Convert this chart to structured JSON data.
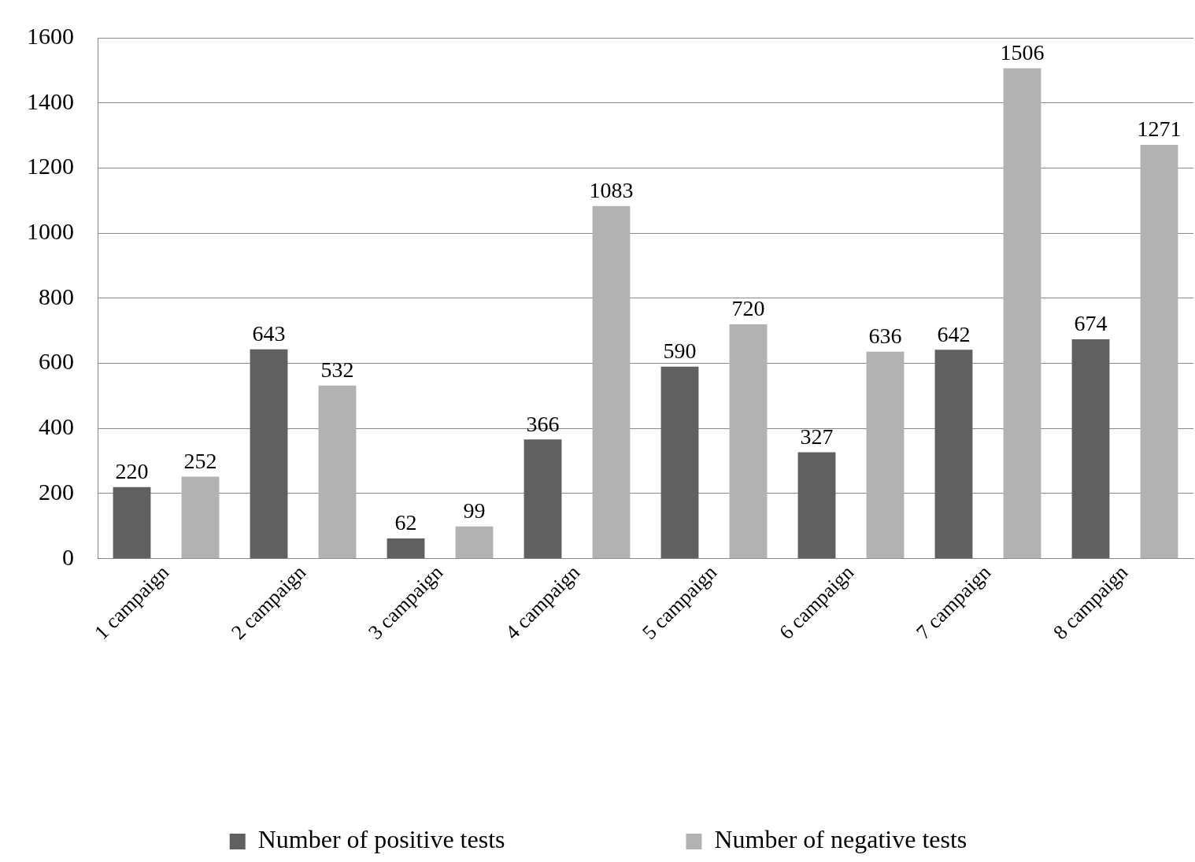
{
  "chart_data": {
    "type": "bar",
    "categories": [
      "1 campaign",
      "2 campaign",
      "3 campaign",
      "4 campaign",
      "5 campaign",
      "6 campaign",
      "7 campaign",
      "8 campaign"
    ],
    "series": [
      {
        "name": "Number of positive tests",
        "color": "#606060",
        "values": [
          220,
          643,
          62,
          366,
          590,
          327,
          642,
          674
        ]
      },
      {
        "name": "Number of negative tests",
        "color": "#b2b2b2",
        "values": [
          252,
          532,
          99,
          1083,
          720,
          636,
          1506,
          1271
        ]
      }
    ],
    "ylim": [
      0,
      1600
    ],
    "yticks": [
      0,
      200,
      400,
      600,
      800,
      1000,
      1200,
      1400,
      1600
    ],
    "grid": "y",
    "legend": "bottom",
    "data_labels": true
  }
}
